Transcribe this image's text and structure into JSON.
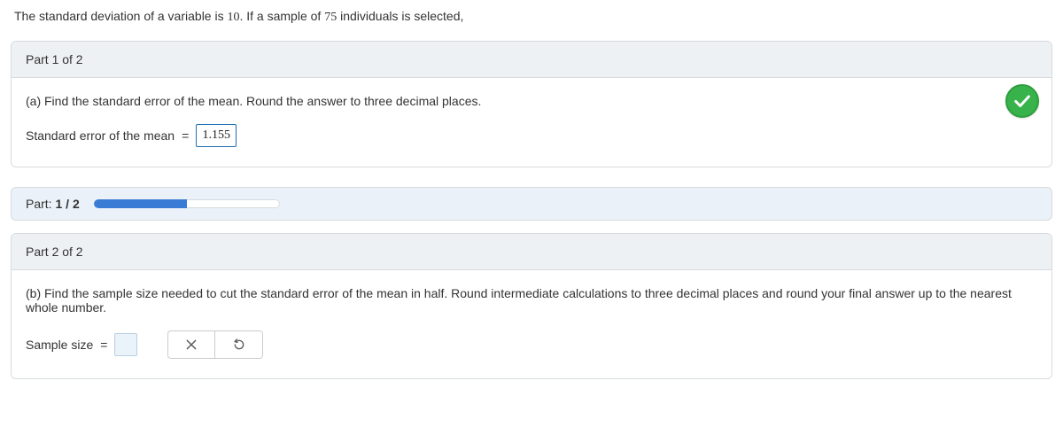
{
  "problem": {
    "prefix": "The standard deviation of a variable is ",
    "sd": "10",
    "mid": ". If a sample of ",
    "n": "75",
    "suffix": " individuals is selected,"
  },
  "part1": {
    "header": "Part 1 of 2",
    "prompt": "(a) Find the standard error of the mean. Round the answer to three decimal places.",
    "answer_label": "Standard error of the mean",
    "eq": "=",
    "value": "1.155",
    "correct": true
  },
  "progress": {
    "label_prefix": "Part: ",
    "current": "1",
    "sep": " / ",
    "total": "2",
    "percent": 50,
    "track_bg": "#ffffff",
    "fill_color": "#3a7bd5",
    "row_bg": "#eaf1f8"
  },
  "part2": {
    "header": "Part 2 of 2",
    "prompt": "(b) Find the sample size needed to cut the standard error of the mean in half. Round intermediate calculations to three decimal places and round your final answer up to the nearest whole number.",
    "answer_label": "Sample size",
    "eq": "=",
    "value": ""
  },
  "colors": {
    "card_border": "#d7dbde",
    "header_bg": "#eef1f3",
    "correct_badge": "#38b24a",
    "input_border": "#1f6fb2",
    "empty_input_bg": "#eaf2fa"
  }
}
